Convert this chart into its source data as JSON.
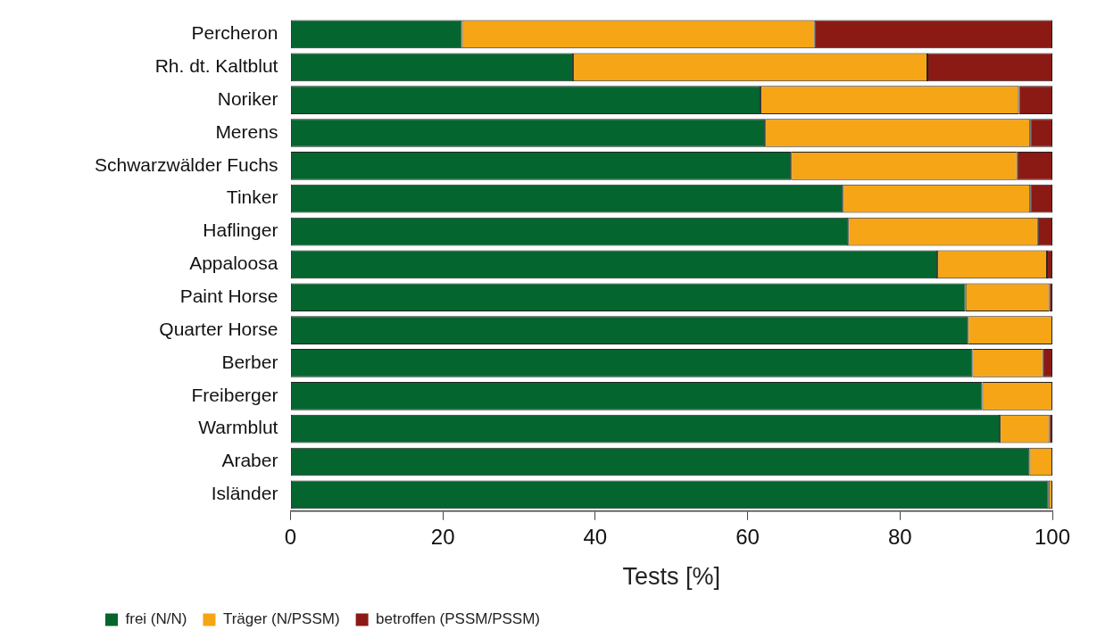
{
  "chart_data": {
    "type": "bar",
    "orientation": "horizontal",
    "stacked": true,
    "xlabel": "Tests [%]",
    "categories": [
      "Percheron",
      "Rh. dt. Kaltblut",
      "Noriker",
      "Merens",
      "Schwarzwälder Fuchs",
      "Tinker",
      "Haflinger",
      "Appaloosa",
      "Paint Horse",
      "Quarter Horse",
      "Berber",
      "Freiberger",
      "Warmblut",
      "Araber",
      "Isländer"
    ],
    "series": [
      {
        "name": "frei (N/N)",
        "color": "#05652f",
        "values": [
          22.5,
          37.1,
          61.7,
          62.3,
          65.7,
          72.5,
          73.2,
          84.9,
          88.6,
          88.9,
          89.5,
          90.8,
          93.1,
          97.0,
          99.5
        ]
      },
      {
        "name": "Träger (N/PSSM)",
        "color": "#f5a516",
        "values": [
          46.3,
          46.5,
          33.9,
          34.8,
          29.7,
          24.6,
          24.9,
          14.4,
          11.0,
          11.1,
          9.3,
          9.2,
          6.5,
          3.0,
          0.5
        ]
      },
      {
        "name": "betroffen (PSSM/PSSM)",
        "color": "#8b1a14",
        "values": [
          31.2,
          16.4,
          4.4,
          2.9,
          4.6,
          2.9,
          1.9,
          0.7,
          0.4,
          0,
          1.2,
          0,
          0.4,
          0,
          0
        ]
      }
    ],
    "xlim": [
      0,
      100
    ],
    "xticks": [
      0,
      20,
      40,
      60,
      80,
      100
    ],
    "grid": false,
    "legend": "bottom left"
  }
}
